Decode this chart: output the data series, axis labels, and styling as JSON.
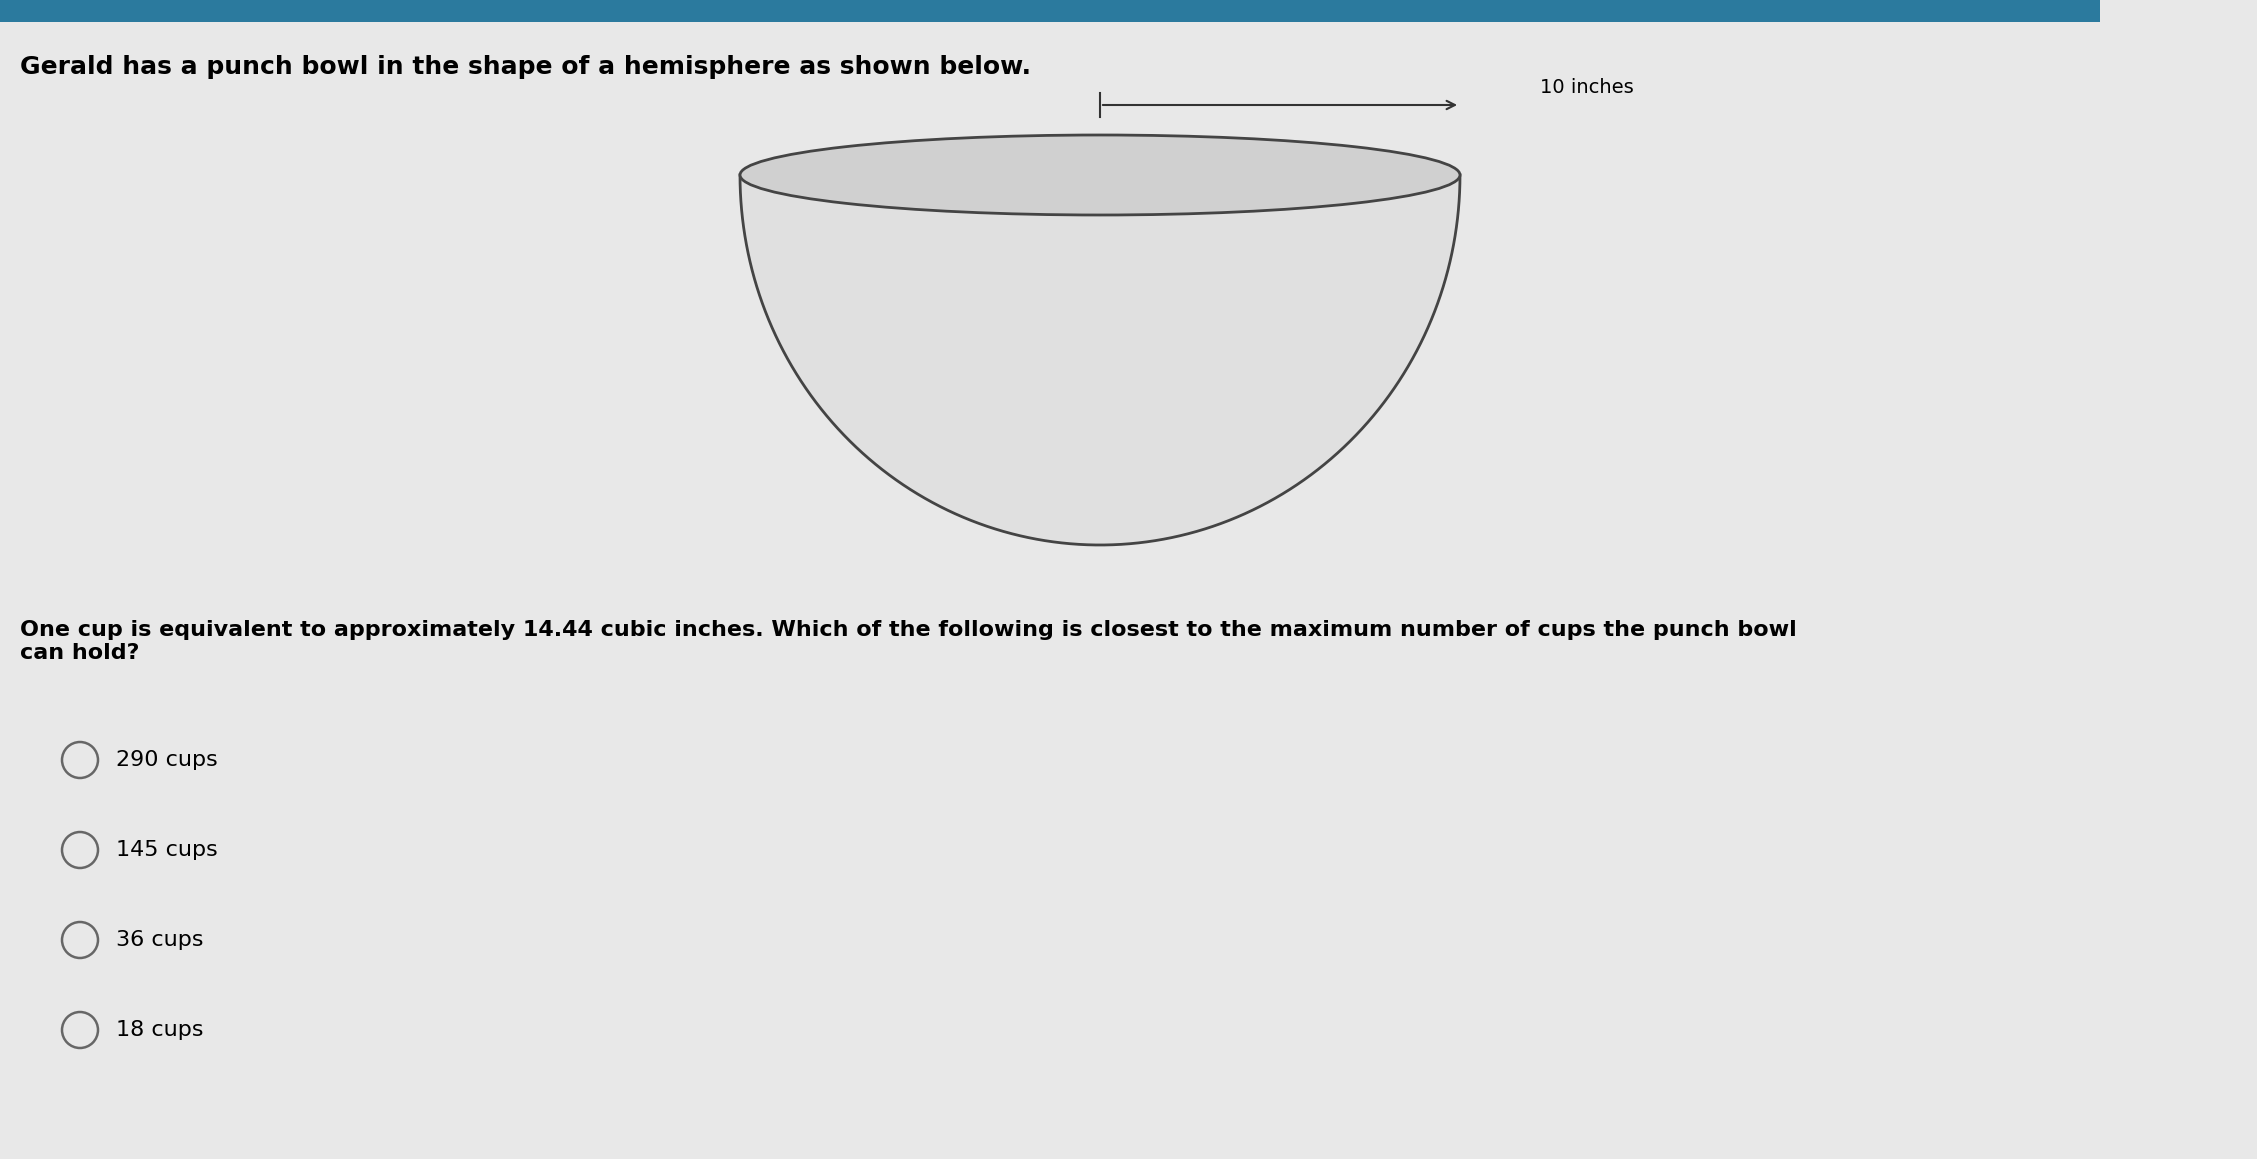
{
  "background_color": "#e8e8e8",
  "top_bar_color": "#2b7a9e",
  "title_text": "Gerald has a punch bowl in the shape of a hemisphere as shown below.",
  "title_fontsize": 18,
  "dimension_label": "10 inches",
  "question_text": "One cup is equivalent to approximately 14.44 cubic inches. Which of the following is closest to the maximum number of cups the punch bowl\ncan hold?",
  "question_fontsize": 16,
  "choices": [
    "290 cups",
    "145 cups",
    "36 cups",
    "18 cups"
  ],
  "choices_fontsize": 16,
  "bowl_line_color": "#444444",
  "bowl_fill_color": "#e0e0e0",
  "top_ellipse_fill": "#d0d0d0",
  "dimension_line_color": "#333333",
  "radio_color": "#666666"
}
